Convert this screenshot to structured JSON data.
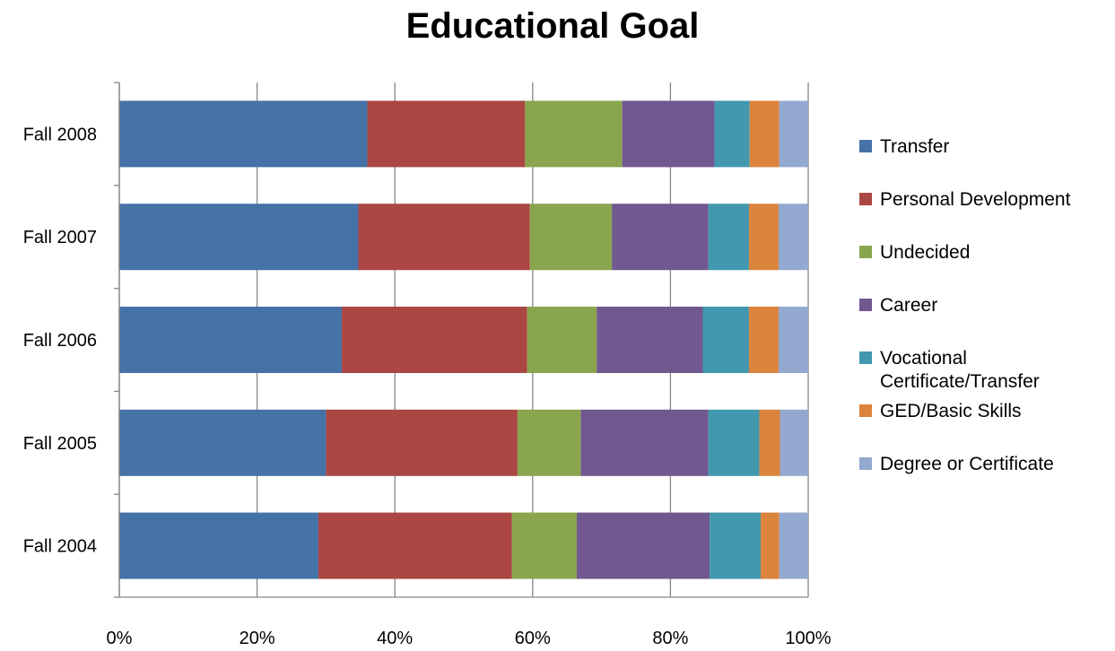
{
  "chart_data": {
    "type": "bar",
    "orientation": "horizontal",
    "stacked": "percent",
    "title": "Educational Goal",
    "xlabel": "",
    "ylabel": "",
    "xlim": [
      0,
      100
    ],
    "x_ticks": [
      "0%",
      "20%",
      "40%",
      "60%",
      "80%",
      "100%"
    ],
    "categories": [
      "Fall 2008",
      "Fall 2007",
      "Fall 2006",
      "Fall 2005",
      "Fall 2004"
    ],
    "series": [
      {
        "name": "Transfer",
        "color": "#4572A7",
        "values": [
          36.0,
          34.7,
          32.3,
          30.0,
          28.9
        ]
      },
      {
        "name": "Personal Development",
        "color": "#AA4643",
        "values": [
          22.9,
          24.9,
          26.9,
          27.8,
          28.1
        ]
      },
      {
        "name": "Undecided",
        "color": "#89A54E",
        "values": [
          14.1,
          11.9,
          10.1,
          9.2,
          9.4
        ]
      },
      {
        "name": "Career",
        "color": "#71588F",
        "values": [
          13.4,
          14.0,
          15.4,
          18.5,
          19.3
        ]
      },
      {
        "name": "Vocational Certificate/Transfer",
        "color": "#4198AF",
        "values": [
          5.1,
          5.9,
          6.7,
          7.4,
          7.4
        ]
      },
      {
        "name": "GED/Basic Skills",
        "color": "#DB843D",
        "values": [
          4.3,
          4.3,
          4.3,
          3.0,
          2.7
        ]
      },
      {
        "name": "Degree or Certificate",
        "color": "#93A9CF",
        "values": [
          4.2,
          4.3,
          4.3,
          4.1,
          4.2
        ]
      }
    ],
    "legend_position": "right",
    "grid": true,
    "colors": {
      "grid": "#868686",
      "background": "#ffffff"
    }
  }
}
